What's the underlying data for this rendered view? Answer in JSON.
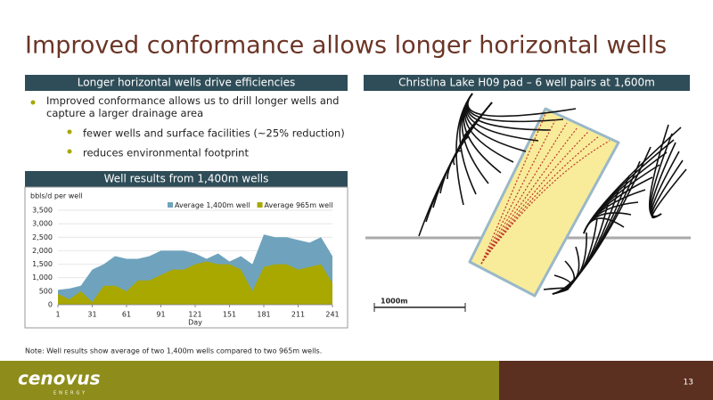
{
  "title": "Improved conformance allows longer horizontal wells",
  "left_panel": {
    "header": "Longer horizontal wells drive efficiencies",
    "bullet": "Improved conformance allows us to drill longer wells and capture a larger drainage area",
    "sub_bullets": [
      "fewer wells and surface facilities (~25% reduction)",
      "reduces environmental footprint"
    ]
  },
  "right_panel": {
    "header": "Christina Lake H09 pad – 6 well pairs at 1,600m",
    "scale_label": "1000m"
  },
  "chart_data": {
    "type": "area",
    "title": "Well results from 1,400m wells",
    "y_label": "bbls/d per well",
    "x_label": "Day",
    "x": [
      1,
      11,
      21,
      31,
      41,
      51,
      61,
      71,
      81,
      91,
      101,
      111,
      121,
      131,
      141,
      151,
      161,
      171,
      181,
      191,
      201,
      211,
      221,
      231,
      241
    ],
    "series": [
      {
        "name": "Average 1,400m well",
        "color": "#6fa3bd",
        "values": [
          550,
          600,
          700,
          1300,
          1500,
          1800,
          1700,
          1700,
          1800,
          2000,
          2000,
          2000,
          1900,
          1700,
          1900,
          1600,
          1800,
          1500,
          2600,
          2500,
          2500,
          2400,
          2300,
          2500,
          1800
        ]
      },
      {
        "name": "Average 965m well",
        "color": "#a8a800",
        "values": [
          400,
          200,
          500,
          100,
          700,
          700,
          500,
          900,
          900,
          1100,
          1300,
          1300,
          1500,
          1600,
          1500,
          1500,
          1300,
          500,
          1400,
          1500,
          1500,
          1300,
          1400,
          1500,
          800
        ]
      }
    ],
    "xlim": [
      1,
      241
    ],
    "xticks": [
      1,
      31,
      61,
      91,
      121,
      151,
      181,
      211,
      241
    ],
    "ylim": [
      0,
      3500
    ],
    "yticks": [
      0,
      500,
      {
        "value": 1000,
        "label": "1,000"
      },
      {
        "value": 1500,
        "label": "1,500"
      },
      {
        "value": 2000,
        "label": "2,000"
      },
      {
        "value": 2500,
        "label": "2,500"
      },
      {
        "value": 3000,
        "label": "3,000"
      },
      {
        "value": 3500,
        "label": "3,500"
      }
    ],
    "grid": true,
    "legend": "top-right"
  },
  "note": "Note: Well results show average of two 1,400m wells compared to two 965m wells.",
  "footer": {
    "logo": "cenovus",
    "tagline": "ENERGY",
    "page_number": "13"
  }
}
